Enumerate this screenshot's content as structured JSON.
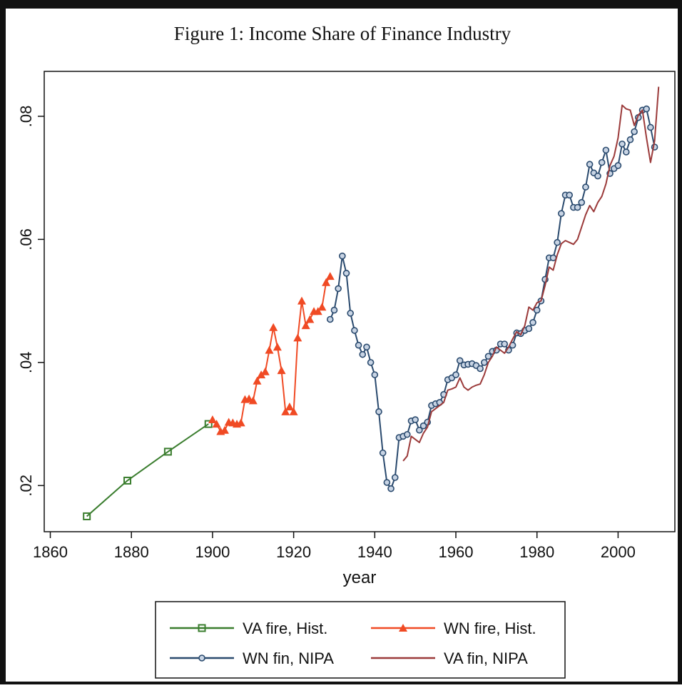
{
  "chart_data": {
    "type": "line",
    "title": "Figure 1: Income Share of Finance Industry",
    "x_label": "year",
    "xlim": [
      1858.5,
      2014
    ],
    "ylim": [
      0.0125,
      0.0873
    ],
    "xticks": [
      1860,
      1880,
      1900,
      1920,
      1940,
      1960,
      1980,
      2000
    ],
    "yticks": [
      {
        "value": 0.02,
        "label": ".02"
      },
      {
        "value": 0.04,
        "label": ".04"
      },
      {
        "value": 0.06,
        "label": ".06"
      },
      {
        "value": 0.08,
        "label": ".08"
      }
    ],
    "grid": false,
    "series": [
      {
        "name": "VA fire, Hist.",
        "color": "#3a7d2e",
        "marker": "square",
        "x": [
          1869,
          1879,
          1889,
          1899
        ],
        "values": [
          0.015,
          0.0208,
          0.0255,
          0.03
        ]
      },
      {
        "name": "WN fire, Hist.",
        "color": "#f04a24",
        "marker": "triangle",
        "x": [
          1900,
          1901,
          1902,
          1903,
          1904,
          1905,
          1906,
          1907,
          1908,
          1909,
          1910,
          1911,
          1912,
          1913,
          1914,
          1915,
          1916,
          1917,
          1918,
          1919,
          1920,
          1921,
          1922,
          1923,
          1924,
          1925,
          1926,
          1927,
          1928,
          1929
        ],
        "values": [
          0.0307,
          0.03,
          0.0288,
          0.029,
          0.0303,
          0.0302,
          0.03,
          0.0302,
          0.034,
          0.0341,
          0.0338,
          0.037,
          0.038,
          0.0385,
          0.042,
          0.0457,
          0.0425,
          0.0387,
          0.032,
          0.0328,
          0.032,
          0.044,
          0.05,
          0.046,
          0.047,
          0.0483,
          0.0483,
          0.049,
          0.053,
          0.054
        ]
      },
      {
        "name": "WN fin, NIPA",
        "color": "#2a4a6e",
        "marker": "circle",
        "x": [
          1929,
          1930,
          1931,
          1932,
          1933,
          1934,
          1935,
          1936,
          1937,
          1938,
          1939,
          1940,
          1941,
          1942,
          1943,
          1944,
          1945,
          1946,
          1947,
          1948,
          1949,
          1950,
          1951,
          1952,
          1953,
          1954,
          1955,
          1956,
          1957,
          1958,
          1959,
          1960,
          1961,
          1962,
          1963,
          1964,
          1965,
          1966,
          1967,
          1968,
          1969,
          1970,
          1971,
          1972,
          1973,
          1974,
          1975,
          1976,
          1977,
          1978,
          1979,
          1980,
          1981,
          1982,
          1983,
          1984,
          1985,
          1986,
          1987,
          1988,
          1989,
          1990,
          1991,
          1992,
          1993,
          1994,
          1995,
          1996,
          1997,
          1998,
          1999,
          2000,
          2001,
          2002,
          2003,
          2004,
          2005,
          2006,
          2007,
          2008,
          2009
        ],
        "values": [
          0.047,
          0.0485,
          0.052,
          0.0573,
          0.0545,
          0.048,
          0.0452,
          0.0428,
          0.0413,
          0.0425,
          0.04,
          0.038,
          0.032,
          0.0253,
          0.0205,
          0.0195,
          0.0213,
          0.0278,
          0.028,
          0.0283,
          0.0305,
          0.0307,
          0.029,
          0.0297,
          0.0303,
          0.033,
          0.0333,
          0.0335,
          0.0348,
          0.0372,
          0.0375,
          0.038,
          0.0403,
          0.0396,
          0.0397,
          0.0398,
          0.0395,
          0.039,
          0.04,
          0.041,
          0.0418,
          0.042,
          0.043,
          0.043,
          0.042,
          0.0428,
          0.0448,
          0.0447,
          0.0452,
          0.0455,
          0.0465,
          0.0485,
          0.05,
          0.0535,
          0.057,
          0.057,
          0.0595,
          0.0642,
          0.0672,
          0.0672,
          0.0652,
          0.0652,
          0.066,
          0.0685,
          0.0722,
          0.0708,
          0.0703,
          0.0725,
          0.0745,
          0.0707,
          0.0715,
          0.072,
          0.0755,
          0.0742,
          0.0762,
          0.0775,
          0.0798,
          0.081,
          0.0812,
          0.0782,
          0.075
        ]
      },
      {
        "name": "VA fin, NIPA",
        "color": "#9b3a3a",
        "marker": "none",
        "x": [
          1947,
          1948,
          1949,
          1950,
          1951,
          1952,
          1953,
          1954,
          1955,
          1956,
          1957,
          1958,
          1959,
          1960,
          1961,
          1962,
          1963,
          1964,
          1965,
          1966,
          1967,
          1968,
          1969,
          1970,
          1971,
          1972,
          1973,
          1974,
          1975,
          1976,
          1977,
          1978,
          1979,
          1980,
          1981,
          1982,
          1983,
          1984,
          1985,
          1986,
          1987,
          1988,
          1989,
          1990,
          1991,
          1992,
          1993,
          1994,
          1995,
          1996,
          1997,
          1998,
          1999,
          2000,
          2001,
          2002,
          2003,
          2004,
          2005,
          2006,
          2007,
          2008,
          2009,
          2010
        ],
        "values": [
          0.024,
          0.0248,
          0.028,
          0.0275,
          0.027,
          0.0285,
          0.0295,
          0.032,
          0.0325,
          0.033,
          0.0335,
          0.0355,
          0.0357,
          0.036,
          0.0375,
          0.036,
          0.0355,
          0.036,
          0.0363,
          0.0365,
          0.038,
          0.04,
          0.041,
          0.0425,
          0.042,
          0.0415,
          0.0425,
          0.0438,
          0.045,
          0.0445,
          0.046,
          0.049,
          0.0485,
          0.0497,
          0.05,
          0.0525,
          0.0555,
          0.055,
          0.0575,
          0.0593,
          0.0598,
          0.0595,
          0.0592,
          0.06,
          0.062,
          0.064,
          0.0655,
          0.0645,
          0.066,
          0.067,
          0.069,
          0.072,
          0.0735,
          0.0765,
          0.0818,
          0.0812,
          0.081,
          0.0785,
          0.0802,
          0.081,
          0.0765,
          0.0725,
          0.076,
          0.0848
        ]
      }
    ]
  }
}
